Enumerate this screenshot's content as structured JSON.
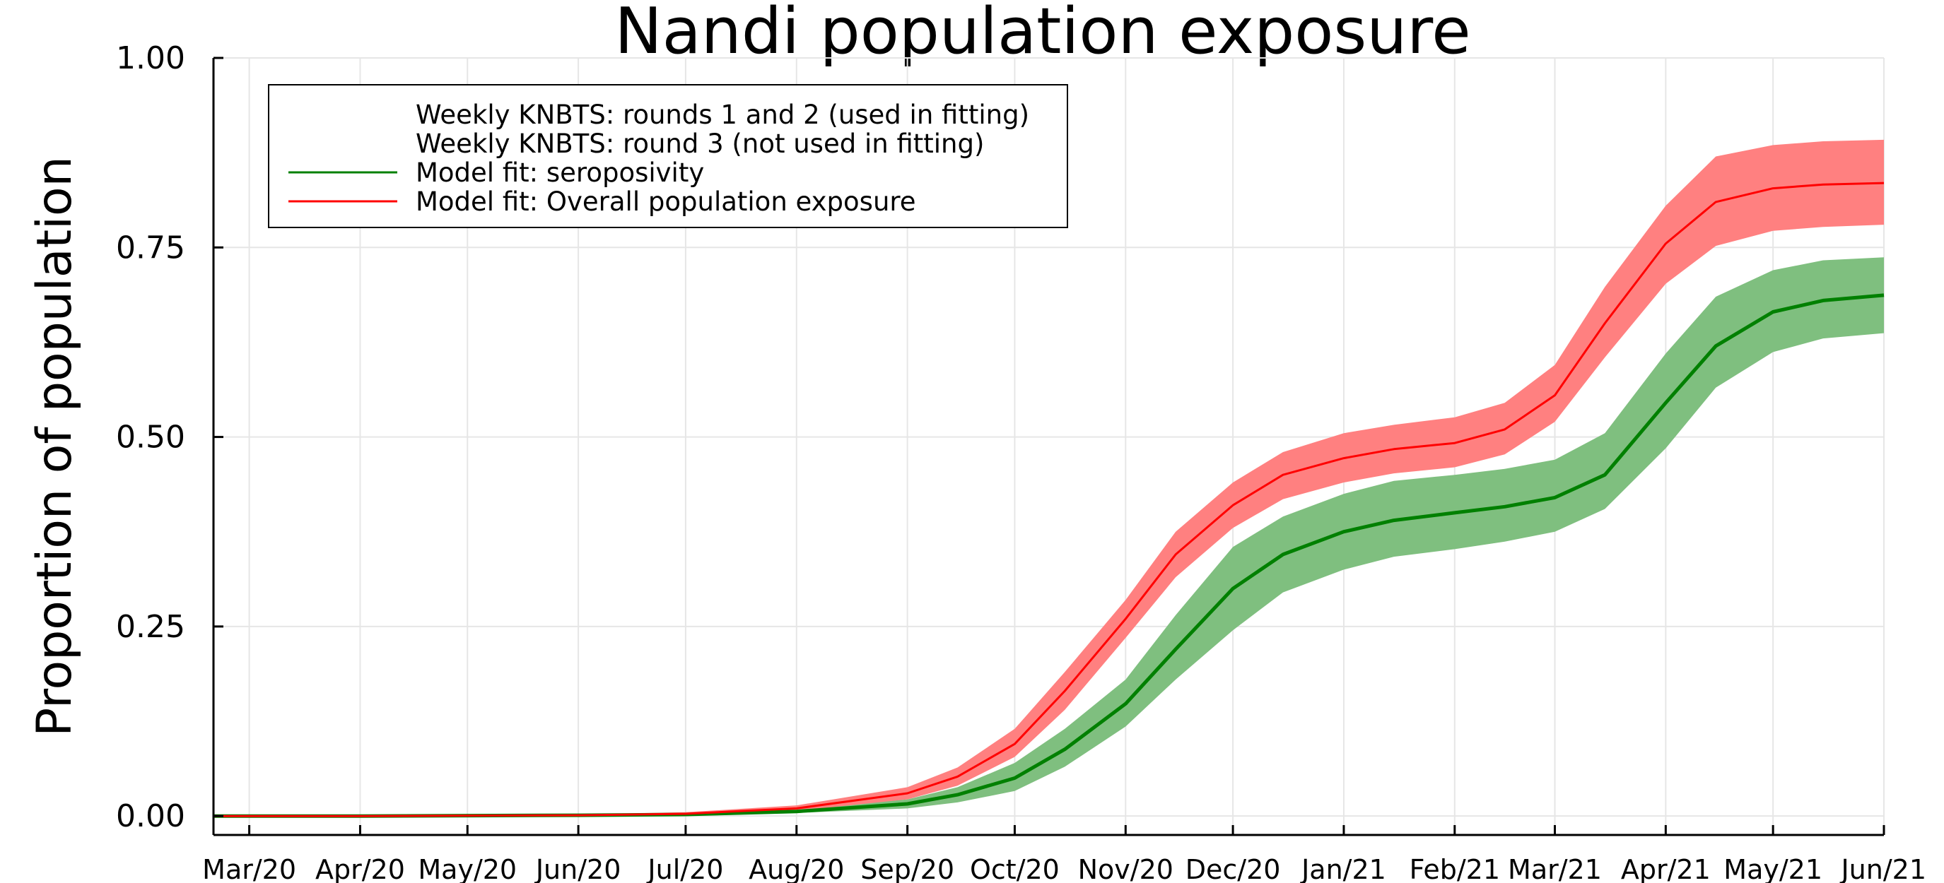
{
  "chart_data": {
    "type": "line",
    "title": "Nandi population exposure",
    "ylabel": "Proportion of population",
    "xlabel": "",
    "x_axis_type": "date",
    "xlim": [
      "2020-02-20",
      "2021-06-01"
    ],
    "ylim": [
      -0.025,
      1.0
    ],
    "yticks": [
      0.0,
      0.25,
      0.5,
      0.75,
      1.0
    ],
    "ytick_labels": [
      "0.00",
      "0.25",
      "0.50",
      "0.75",
      "1.00"
    ],
    "xticks": [
      "2020-03-01",
      "2020-04-01",
      "2020-05-01",
      "2020-06-01",
      "2020-07-01",
      "2020-08-01",
      "2020-09-01",
      "2020-10-01",
      "2020-11-01",
      "2020-12-01",
      "2021-01-01",
      "2021-02-01",
      "2021-03-01",
      "2021-04-01",
      "2021-05-01",
      "2021-06-01"
    ],
    "xtick_labels": [
      "Mar/20",
      "Apr/20",
      "May/20",
      "Jun/20",
      "Jul/20",
      "Aug/20",
      "Sep/20",
      "Oct/20",
      "Nov/20",
      "Dec/20",
      "Jan/21",
      "Feb/21",
      "Mar/21",
      "Apr/21",
      "May/21",
      "Jun/21"
    ],
    "grid": true,
    "legend_position": "top-left",
    "legend": [
      {
        "label": "Weekly KNBTS: rounds 1 and 2 (used in fitting)",
        "line": false
      },
      {
        "label": "Weekly KNBTS: round 3 (not used in fitting)",
        "line": false
      },
      {
        "label": "Model fit: seroposivity",
        "line": true,
        "color": "#008000"
      },
      {
        "label": "Model fit: Overall population exposure",
        "line": true,
        "color": "#ff0000"
      }
    ],
    "series": [
      {
        "name": "Model fit: seroposivity",
        "color": "#008000",
        "band_color": "#7fbf7f",
        "x": [
          "2020-02-20",
          "2020-04-01",
          "2020-06-01",
          "2020-07-01",
          "2020-08-01",
          "2020-09-01",
          "2020-09-15",
          "2020-10-01",
          "2020-10-15",
          "2020-11-01",
          "2020-11-15",
          "2020-12-01",
          "2020-12-15",
          "2021-01-01",
          "2021-01-15",
          "2021-02-01",
          "2021-02-15",
          "2021-03-01",
          "2021-03-15",
          "2021-04-01",
          "2021-04-15",
          "2021-05-01",
          "2021-05-15",
          "2021-06-01"
        ],
        "y": [
          0.0,
          0.0,
          0.001,
          0.002,
          0.006,
          0.016,
          0.028,
          0.05,
          0.088,
          0.148,
          0.22,
          0.3,
          0.345,
          0.375,
          0.39,
          0.4,
          0.408,
          0.42,
          0.45,
          0.545,
          0.62,
          0.665,
          0.68,
          0.687
        ],
        "lower": [
          0.0,
          0.0,
          0.0,
          0.001,
          0.004,
          0.01,
          0.018,
          0.033,
          0.065,
          0.118,
          0.18,
          0.245,
          0.295,
          0.325,
          0.342,
          0.352,
          0.362,
          0.375,
          0.405,
          0.485,
          0.565,
          0.612,
          0.63,
          0.637
        ],
        "upper": [
          0.0,
          0.0,
          0.002,
          0.004,
          0.009,
          0.022,
          0.038,
          0.07,
          0.115,
          0.18,
          0.265,
          0.355,
          0.395,
          0.425,
          0.442,
          0.45,
          0.458,
          0.47,
          0.505,
          0.61,
          0.685,
          0.72,
          0.733,
          0.737
        ]
      },
      {
        "name": "Model fit: Overall population exposure",
        "color": "#ff0000",
        "band_color": "#ff8080",
        "x": [
          "2020-02-20",
          "2020-04-01",
          "2020-06-01",
          "2020-07-01",
          "2020-08-01",
          "2020-09-01",
          "2020-09-15",
          "2020-10-01",
          "2020-10-15",
          "2020-11-01",
          "2020-11-15",
          "2020-12-01",
          "2020-12-15",
          "2021-01-01",
          "2021-01-15",
          "2021-02-01",
          "2021-02-15",
          "2021-03-01",
          "2021-03-15",
          "2021-04-01",
          "2021-04-15",
          "2021-05-01",
          "2021-05-15",
          "2021-06-01"
        ],
        "y": [
          0.0,
          0.0,
          0.001,
          0.003,
          0.01,
          0.03,
          0.052,
          0.095,
          0.165,
          0.26,
          0.345,
          0.41,
          0.45,
          0.472,
          0.484,
          0.492,
          0.51,
          0.555,
          0.65,
          0.755,
          0.81,
          0.828,
          0.833,
          0.835
        ],
        "lower": [
          0.0,
          0.0,
          0.0,
          0.002,
          0.007,
          0.022,
          0.04,
          0.078,
          0.14,
          0.235,
          0.315,
          0.38,
          0.418,
          0.44,
          0.452,
          0.46,
          0.477,
          0.52,
          0.605,
          0.702,
          0.752,
          0.772,
          0.777,
          0.78
        ],
        "upper": [
          0.0,
          0.001,
          0.002,
          0.005,
          0.014,
          0.038,
          0.064,
          0.115,
          0.19,
          0.285,
          0.375,
          0.44,
          0.48,
          0.505,
          0.516,
          0.526,
          0.545,
          0.595,
          0.698,
          0.805,
          0.87,
          0.885,
          0.89,
          0.892
        ]
      }
    ]
  }
}
